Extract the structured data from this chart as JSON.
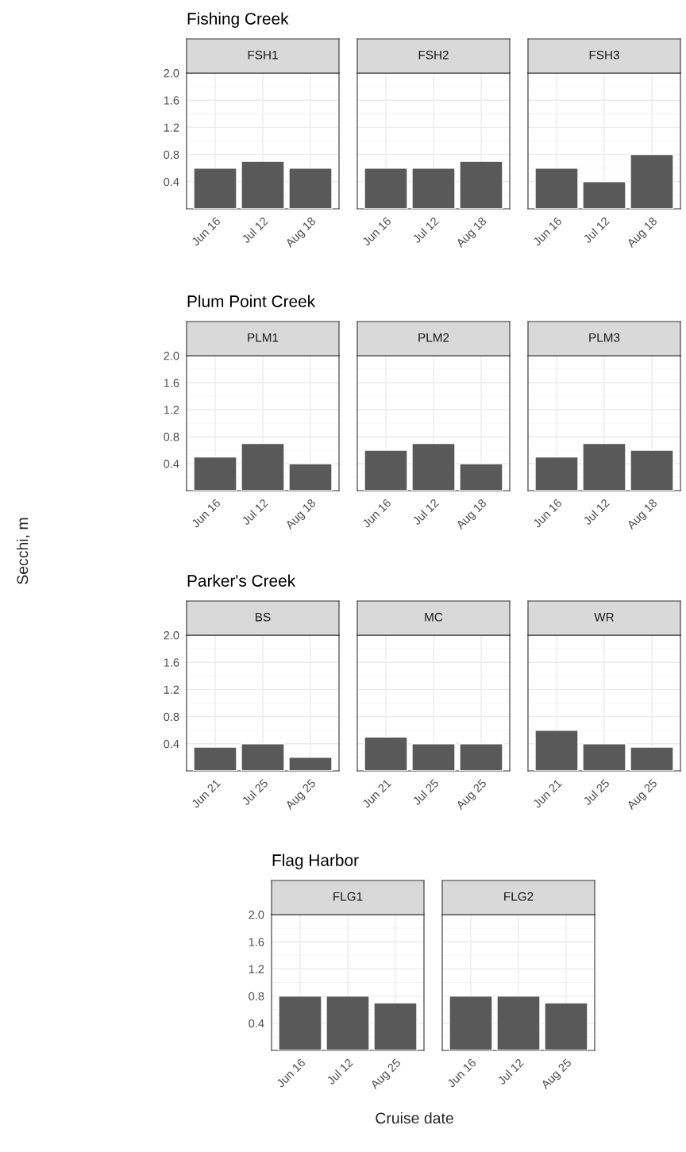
{
  "chart_data": [
    {
      "type": "bar",
      "title": "Fishing Creek",
      "subtitle": "FSH1",
      "categories": [
        "Jun 16",
        "Jul 12",
        "Aug 18"
      ],
      "values": [
        0.6,
        0.7,
        0.6
      ],
      "color": "#595959",
      "ylim": [
        0,
        2
      ],
      "yticks": [
        {
          "value": 0.4,
          "label": "0.4"
        },
        {
          "value": 0.8,
          "label": "0.8"
        },
        {
          "value": 1.2,
          "label": "1.2"
        },
        {
          "value": 1.6,
          "label": "1.6"
        },
        {
          "value": 2,
          "label": "2.0"
        }
      ],
      "grid": true
    },
    {
      "type": "bar",
      "subtitle": "FSH2",
      "categories": [
        "Jun 16",
        "Jul 12",
        "Aug 18"
      ],
      "values": [
        0.6,
        0.6,
        0.7
      ],
      "color": "#595959",
      "ylim": [
        0,
        2
      ],
      "yticks": [
        0.4,
        0.8,
        1.2,
        1.6,
        2
      ],
      "grid": true,
      "tick_labels": "x"
    },
    {
      "type": "bar",
      "subtitle": "FSH3",
      "categories": [
        "Jun 16",
        "Jul 12",
        "Aug 18"
      ],
      "values": [
        0.6,
        0.4,
        0.8
      ],
      "color": "#595959",
      "ylim": [
        0,
        2
      ],
      "yticks": [
        0.4,
        0.8,
        1.2,
        1.6,
        2
      ],
      "grid": true,
      "tick_labels": "x"
    },
    {
      "type": "bar",
      "title": "Plum Point Creek",
      "subtitle": "PLM1",
      "ylabel": "Secchi, m",
      "categories": [
        "Jun 16",
        "Jul 12",
        "Aug 18"
      ],
      "values": [
        0.5,
        0.7,
        0.4
      ],
      "color": "#595959",
      "ylim": [
        0,
        2
      ],
      "yticks": [
        {
          "value": 0.4,
          "label": "0.4"
        },
        {
          "value": 0.8,
          "label": "0.8"
        },
        {
          "value": 1.2,
          "label": "1.2"
        },
        {
          "value": 1.6,
          "label": "1.6"
        },
        {
          "value": 2,
          "label": "2.0"
        }
      ],
      "grid": true
    },
    {
      "type": "bar",
      "subtitle": "PLM2",
      "categories": [
        "Jun 16",
        "Jul 12",
        "Aug 18"
      ],
      "values": [
        0.6,
        0.7,
        0.4
      ],
      "color": "#595959",
      "ylim": [
        0,
        2
      ],
      "yticks": [
        0.4,
        0.8,
        1.2,
        1.6,
        2
      ],
      "grid": true,
      "tick_labels": "x"
    },
    {
      "type": "bar",
      "subtitle": "PLM3",
      "categories": [
        "Jun 16",
        "Jul 12",
        "Aug 18"
      ],
      "values": [
        0.5,
        0.7,
        0.6
      ],
      "color": "#595959",
      "ylim": [
        0,
        2
      ],
      "yticks": [
        0.4,
        0.8,
        1.2,
        1.6,
        2
      ],
      "grid": true,
      "tick_labels": "x"
    },
    {
      "type": "bar",
      "title": "Parker's Creek",
      "subtitle": "BS",
      "categories": [
        "Jun 21",
        "Jul 25",
        "Aug 25"
      ],
      "values": [
        0.35,
        0.4,
        0.2
      ],
      "color": "#595959",
      "ylim": [
        0,
        2
      ],
      "yticks": [
        {
          "value": 0.4,
          "label": "0.4"
        },
        {
          "value": 0.8,
          "label": "0.8"
        },
        {
          "value": 1.2,
          "label": "1.2"
        },
        {
          "value": 1.6,
          "label": "1.6"
        },
        {
          "value": 2,
          "label": "2.0"
        }
      ],
      "grid": true
    },
    {
      "type": "bar",
      "subtitle": "MC",
      "categories": [
        "Jun 21",
        "Jul 25",
        "Aug 25"
      ],
      "values": [
        0.5,
        0.4,
        0.4
      ],
      "color": "#595959",
      "ylim": [
        0,
        2
      ],
      "yticks": [
        0.4,
        0.8,
        1.2,
        1.6,
        2
      ],
      "grid": true,
      "tick_labels": "x"
    },
    {
      "type": "bar",
      "subtitle": "WR",
      "categories": [
        "Jun 21",
        "Jul 25",
        "Aug 25"
      ],
      "values": [
        0.6,
        0.4,
        0.35
      ],
      "color": "#595959",
      "ylim": [
        0,
        2
      ],
      "yticks": [
        0.4,
        0.8,
        1.2,
        1.6,
        2
      ],
      "grid": true,
      "tick_labels": "x"
    },
    {
      "type": "bar",
      "title": "Flag Harbor",
      "subtitle": "FLG1",
      "categories": [
        "Jun 16",
        "Jul 12",
        "Aug 25"
      ],
      "values": [
        0.8,
        0.8,
        0.7
      ],
      "color": "#595959",
      "ylim": [
        0,
        2
      ],
      "yticks": [
        {
          "value": 0.4,
          "label": "0.4"
        },
        {
          "value": 0.8,
          "label": "0.8"
        },
        {
          "value": 1.2,
          "label": "1.2"
        },
        {
          "value": 1.6,
          "label": "1.6"
        },
        {
          "value": 2,
          "label": "2.0"
        }
      ],
      "grid": true
    },
    {
      "type": "bar",
      "subtitle": "FLG2",
      "xlabel": "Cruise date",
      "categories": [
        "Jun 16",
        "Jul 12",
        "Aug 25"
      ],
      "values": [
        0.8,
        0.8,
        0.7
      ],
      "color": "#595959",
      "ylim": [
        0,
        2
      ],
      "yticks": [
        0.4,
        0.8,
        1.2,
        1.6,
        2
      ],
      "grid": true,
      "tick_labels": "x"
    }
  ]
}
